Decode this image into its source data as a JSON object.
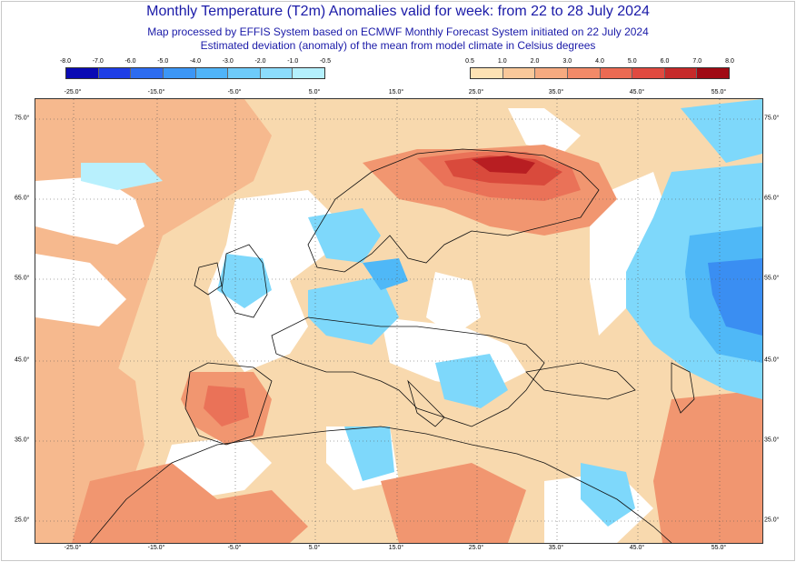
{
  "header": {
    "title": "Monthly Temperature (T2m) Anomalies valid for week: from 22 to 28 July 2024",
    "subtitle1": "Map processed by EFFIS System based on ECMWF Monthly Forecast System initiated on 22 July 2024",
    "subtitle2": "Estimated deviation (anomaly) of the mean from model climate in Celsius degrees"
  },
  "legend_cold": {
    "labels": [
      "-8.0",
      "-7.0",
      "-6.0",
      "-5.0",
      "-4.0",
      "-3.0",
      "-2.0",
      "-1.0",
      "-0.5"
    ],
    "colors": [
      "#0a0ab4",
      "#1e3ee6",
      "#2d6cf0",
      "#3c96f5",
      "#50b4f8",
      "#6ecbfa",
      "#8cdcfc",
      "#b4f0fd"
    ]
  },
  "legend_warm": {
    "labels": [
      "0.5",
      "1.0",
      "2.0",
      "3.0",
      "4.0",
      "5.0",
      "6.0",
      "7.0",
      "8.0"
    ],
    "colors": [
      "#fde2b4",
      "#f9c89a",
      "#f6aa80",
      "#f28a68",
      "#ec6a52",
      "#e04a40",
      "#c62a2a",
      "#a00a14"
    ]
  },
  "axes": {
    "lon_labels": [
      "-25.0°",
      "-15.0°",
      "-5.0°",
      "5.0°",
      "15.0°",
      "25.0°",
      "35.0°",
      "45.0°",
      "55.0°"
    ],
    "lat_labels": [
      "75.0°",
      "65.0°",
      "55.0°",
      "45.0°",
      "35.0°",
      "25.0°"
    ]
  },
  "colors": {
    "title": "#1a1aa8",
    "land_base": "#f8d9ae",
    "warm1": "#f6b98e",
    "warm2": "#f19670",
    "warm3": "#ea7258",
    "warm4": "#d94a3c",
    "warm5": "#b81e22",
    "cool1": "#b8f0fd",
    "cool2": "#7ed8fb",
    "cool3": "#4fb8f7",
    "cool4": "#3a8ef2",
    "white": "#ffffff",
    "border": "#111111",
    "grid": "#555555"
  }
}
